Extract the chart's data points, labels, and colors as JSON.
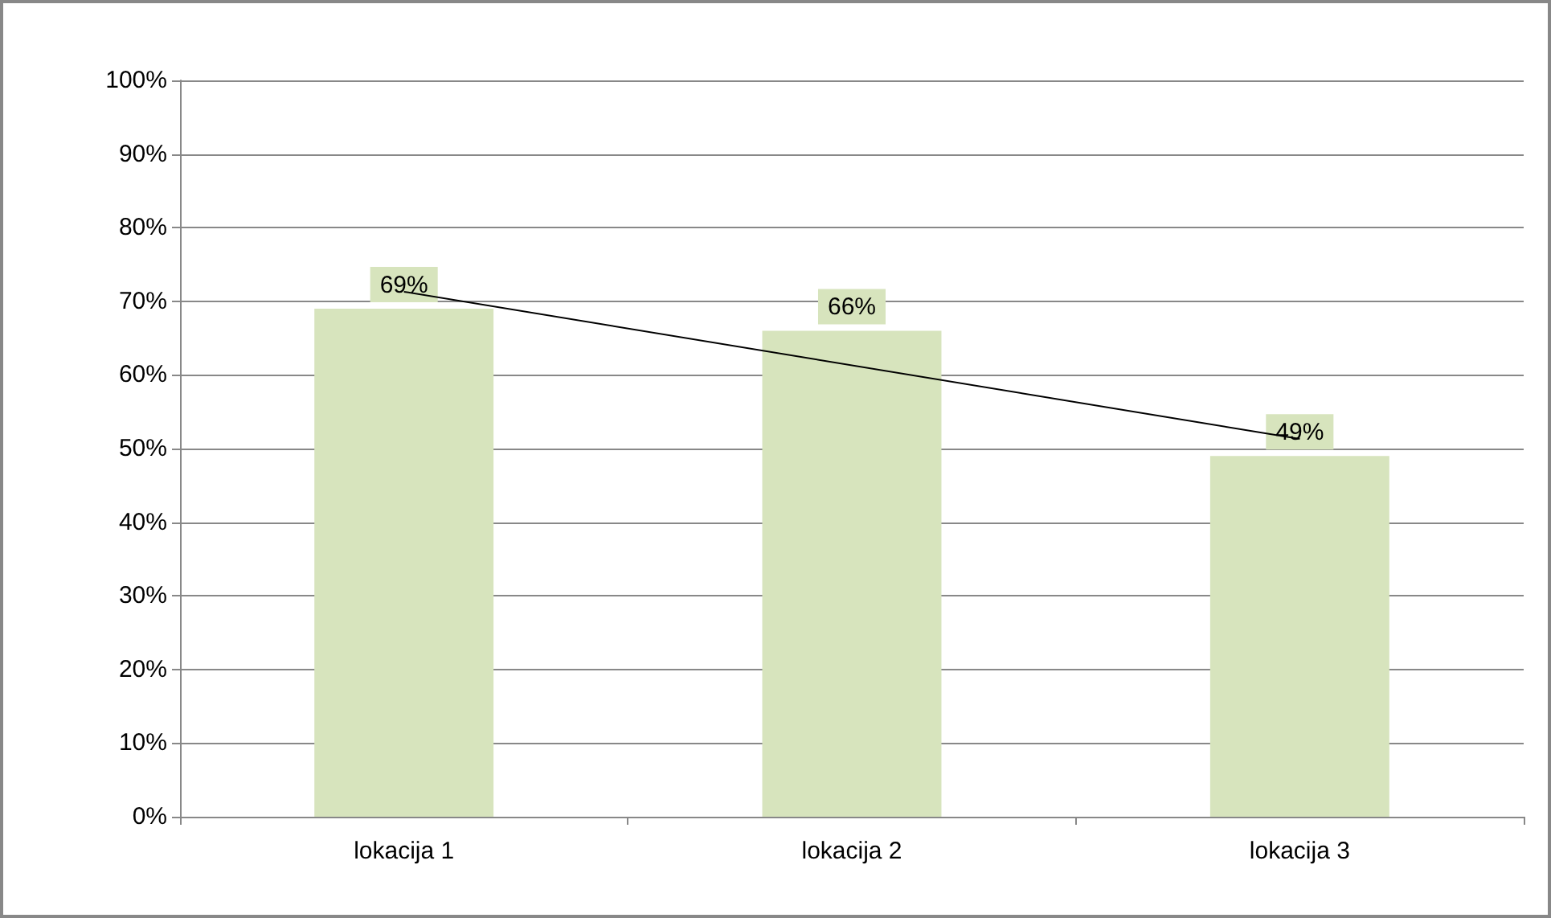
{
  "chart_data": {
    "type": "bar",
    "categories": [
      "lokacija 1",
      "lokacija 2",
      "lokacija 3"
    ],
    "series": [
      {
        "color": "#d7e4bd",
        "values": [
          69,
          66,
          49
        ],
        "value_labels": [
          "69%",
          "66%",
          "49%"
        ]
      },
      {
        "type": "line",
        "color": "#000000",
        "x": [
          "lokacija 1",
          "lokacija 3"
        ],
        "values": [
          71.3,
          51.3
        ],
        "marker": "none"
      }
    ],
    "ylim": [
      0,
      100
    ],
    "yticks": [
      {
        "value": 0,
        "label": "0%"
      },
      {
        "value": 10,
        "label": "10%"
      },
      {
        "value": 20,
        "label": "20%"
      },
      {
        "value": 30,
        "label": "30%"
      },
      {
        "value": 40,
        "label": "40%"
      },
      {
        "value": 50,
        "label": "50%"
      },
      {
        "value": 60,
        "label": "60%"
      },
      {
        "value": 70,
        "label": "70%"
      },
      {
        "value": 80,
        "label": "80%"
      },
      {
        "value": 90,
        "label": "90%"
      },
      {
        "value": 100,
        "label": "100%"
      }
    ],
    "grid": "y"
  }
}
